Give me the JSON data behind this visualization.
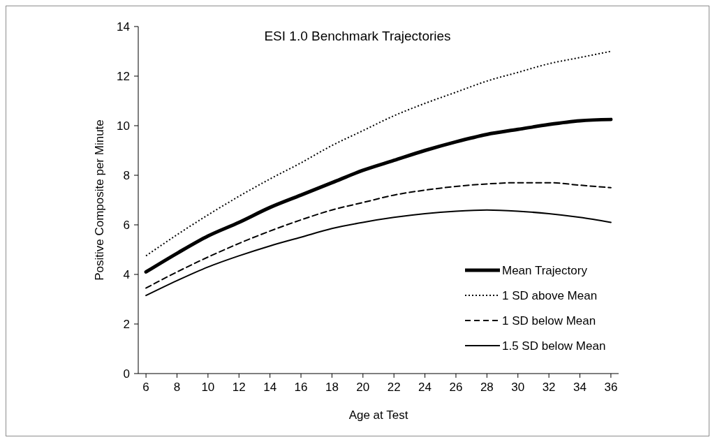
{
  "chart_data": {
    "type": "line",
    "title": "ESI 1.0 Benchmark Trajectories",
    "xlabel": "Age at Test",
    "ylabel": "Positive Composite per Minute",
    "x": [
      6,
      8,
      10,
      12,
      14,
      16,
      18,
      20,
      22,
      24,
      26,
      28,
      30,
      32,
      34,
      36
    ],
    "xlim": [
      5.5,
      36.5
    ],
    "xticks": [
      6,
      8,
      10,
      12,
      14,
      16,
      18,
      20,
      22,
      24,
      26,
      28,
      30,
      32,
      34,
      36
    ],
    "ylim": [
      0,
      14
    ],
    "yticks": [
      0,
      2,
      4,
      6,
      8,
      10,
      12,
      14
    ],
    "grid": false,
    "legend": "bottom right",
    "marker": "none",
    "series": [
      {
        "name": "Mean Trajectory",
        "color": "#000000",
        "line_style": "solid",
        "values": [
          4.1,
          4.85,
          5.55,
          6.1,
          6.7,
          7.2,
          7.7,
          8.2,
          8.6,
          9.0,
          9.35,
          9.65,
          9.85,
          10.05,
          10.2,
          10.25
        ]
      },
      {
        "name": "1 SD above Mean",
        "color": "#000000",
        "line_style": "dotted",
        "values": [
          4.75,
          5.6,
          6.4,
          7.15,
          7.85,
          8.5,
          9.2,
          9.8,
          10.4,
          10.9,
          11.35,
          11.8,
          12.15,
          12.5,
          12.75,
          13.0
        ]
      },
      {
        "name": "1 SD below Mean",
        "color": "#000000",
        "line_style": "dashed",
        "values": [
          3.45,
          4.1,
          4.7,
          5.25,
          5.75,
          6.2,
          6.6,
          6.9,
          7.2,
          7.4,
          7.55,
          7.65,
          7.7,
          7.7,
          7.6,
          7.5
        ]
      },
      {
        "name": "1.5 SD below Mean",
        "color": "#000000",
        "line_style": "solid",
        "values": [
          3.15,
          3.75,
          4.3,
          4.75,
          5.15,
          5.5,
          5.85,
          6.1,
          6.3,
          6.45,
          6.55,
          6.6,
          6.55,
          6.45,
          6.3,
          6.1
        ]
      }
    ]
  }
}
